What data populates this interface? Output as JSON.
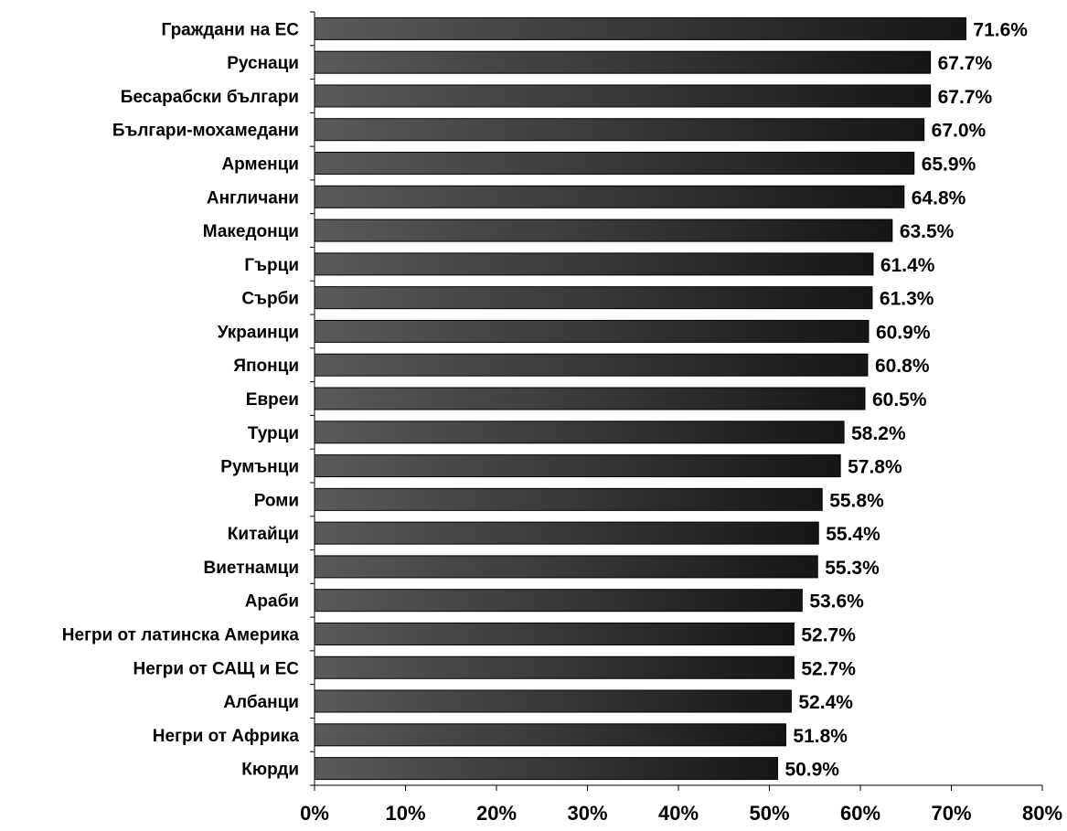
{
  "chart_data": {
    "type": "bar",
    "orientation": "horizontal",
    "categories": [
      "Граждани на ЕС",
      "Руснаци",
      "Бесарабски българи",
      "Българи-мохамедани",
      "Арменци",
      "Англичани",
      "Македонци",
      "Гърци",
      "Сърби",
      "Украинци",
      "Японци",
      "Евреи",
      "Турци",
      "Румънци",
      "Роми",
      "Китайци",
      "Виетнамци",
      "Араби",
      "Негри от латинска Америка",
      "Негри от САЩ и ЕС",
      "Албанци",
      "Негри от Африка",
      "Кюрди"
    ],
    "values": [
      71.6,
      67.7,
      67.7,
      67.0,
      65.9,
      64.8,
      63.5,
      61.4,
      61.3,
      60.9,
      60.8,
      60.5,
      58.2,
      57.8,
      55.8,
      55.4,
      55.3,
      53.6,
      52.7,
      52.7,
      52.4,
      51.8,
      50.9
    ],
    "value_labels": [
      "71.6%",
      "67.7%",
      "67.7%",
      "67.0%",
      "65.9%",
      "64.8%",
      "63.5%",
      "61.4%",
      "61.3%",
      "60.9%",
      "60.8%",
      "60.5%",
      "58.2%",
      "57.8%",
      "55.8%",
      "55.4%",
      "55.3%",
      "53.6%",
      "52.7%",
      "52.7%",
      "52.4%",
      "51.8%",
      "50.9%"
    ],
    "xlim": [
      0,
      80
    ],
    "xticks": [
      "0%",
      "10%",
      "20%",
      "30%",
      "40%",
      "50%",
      "60%",
      "70%",
      "80%"
    ],
    "title": "",
    "xlabel": "",
    "ylabel": "",
    "grid": false,
    "colors": {
      "bar_start": "#5a5a5a",
      "bar_end": "#161616",
      "axis": "#000000",
      "text": "#000000"
    }
  }
}
